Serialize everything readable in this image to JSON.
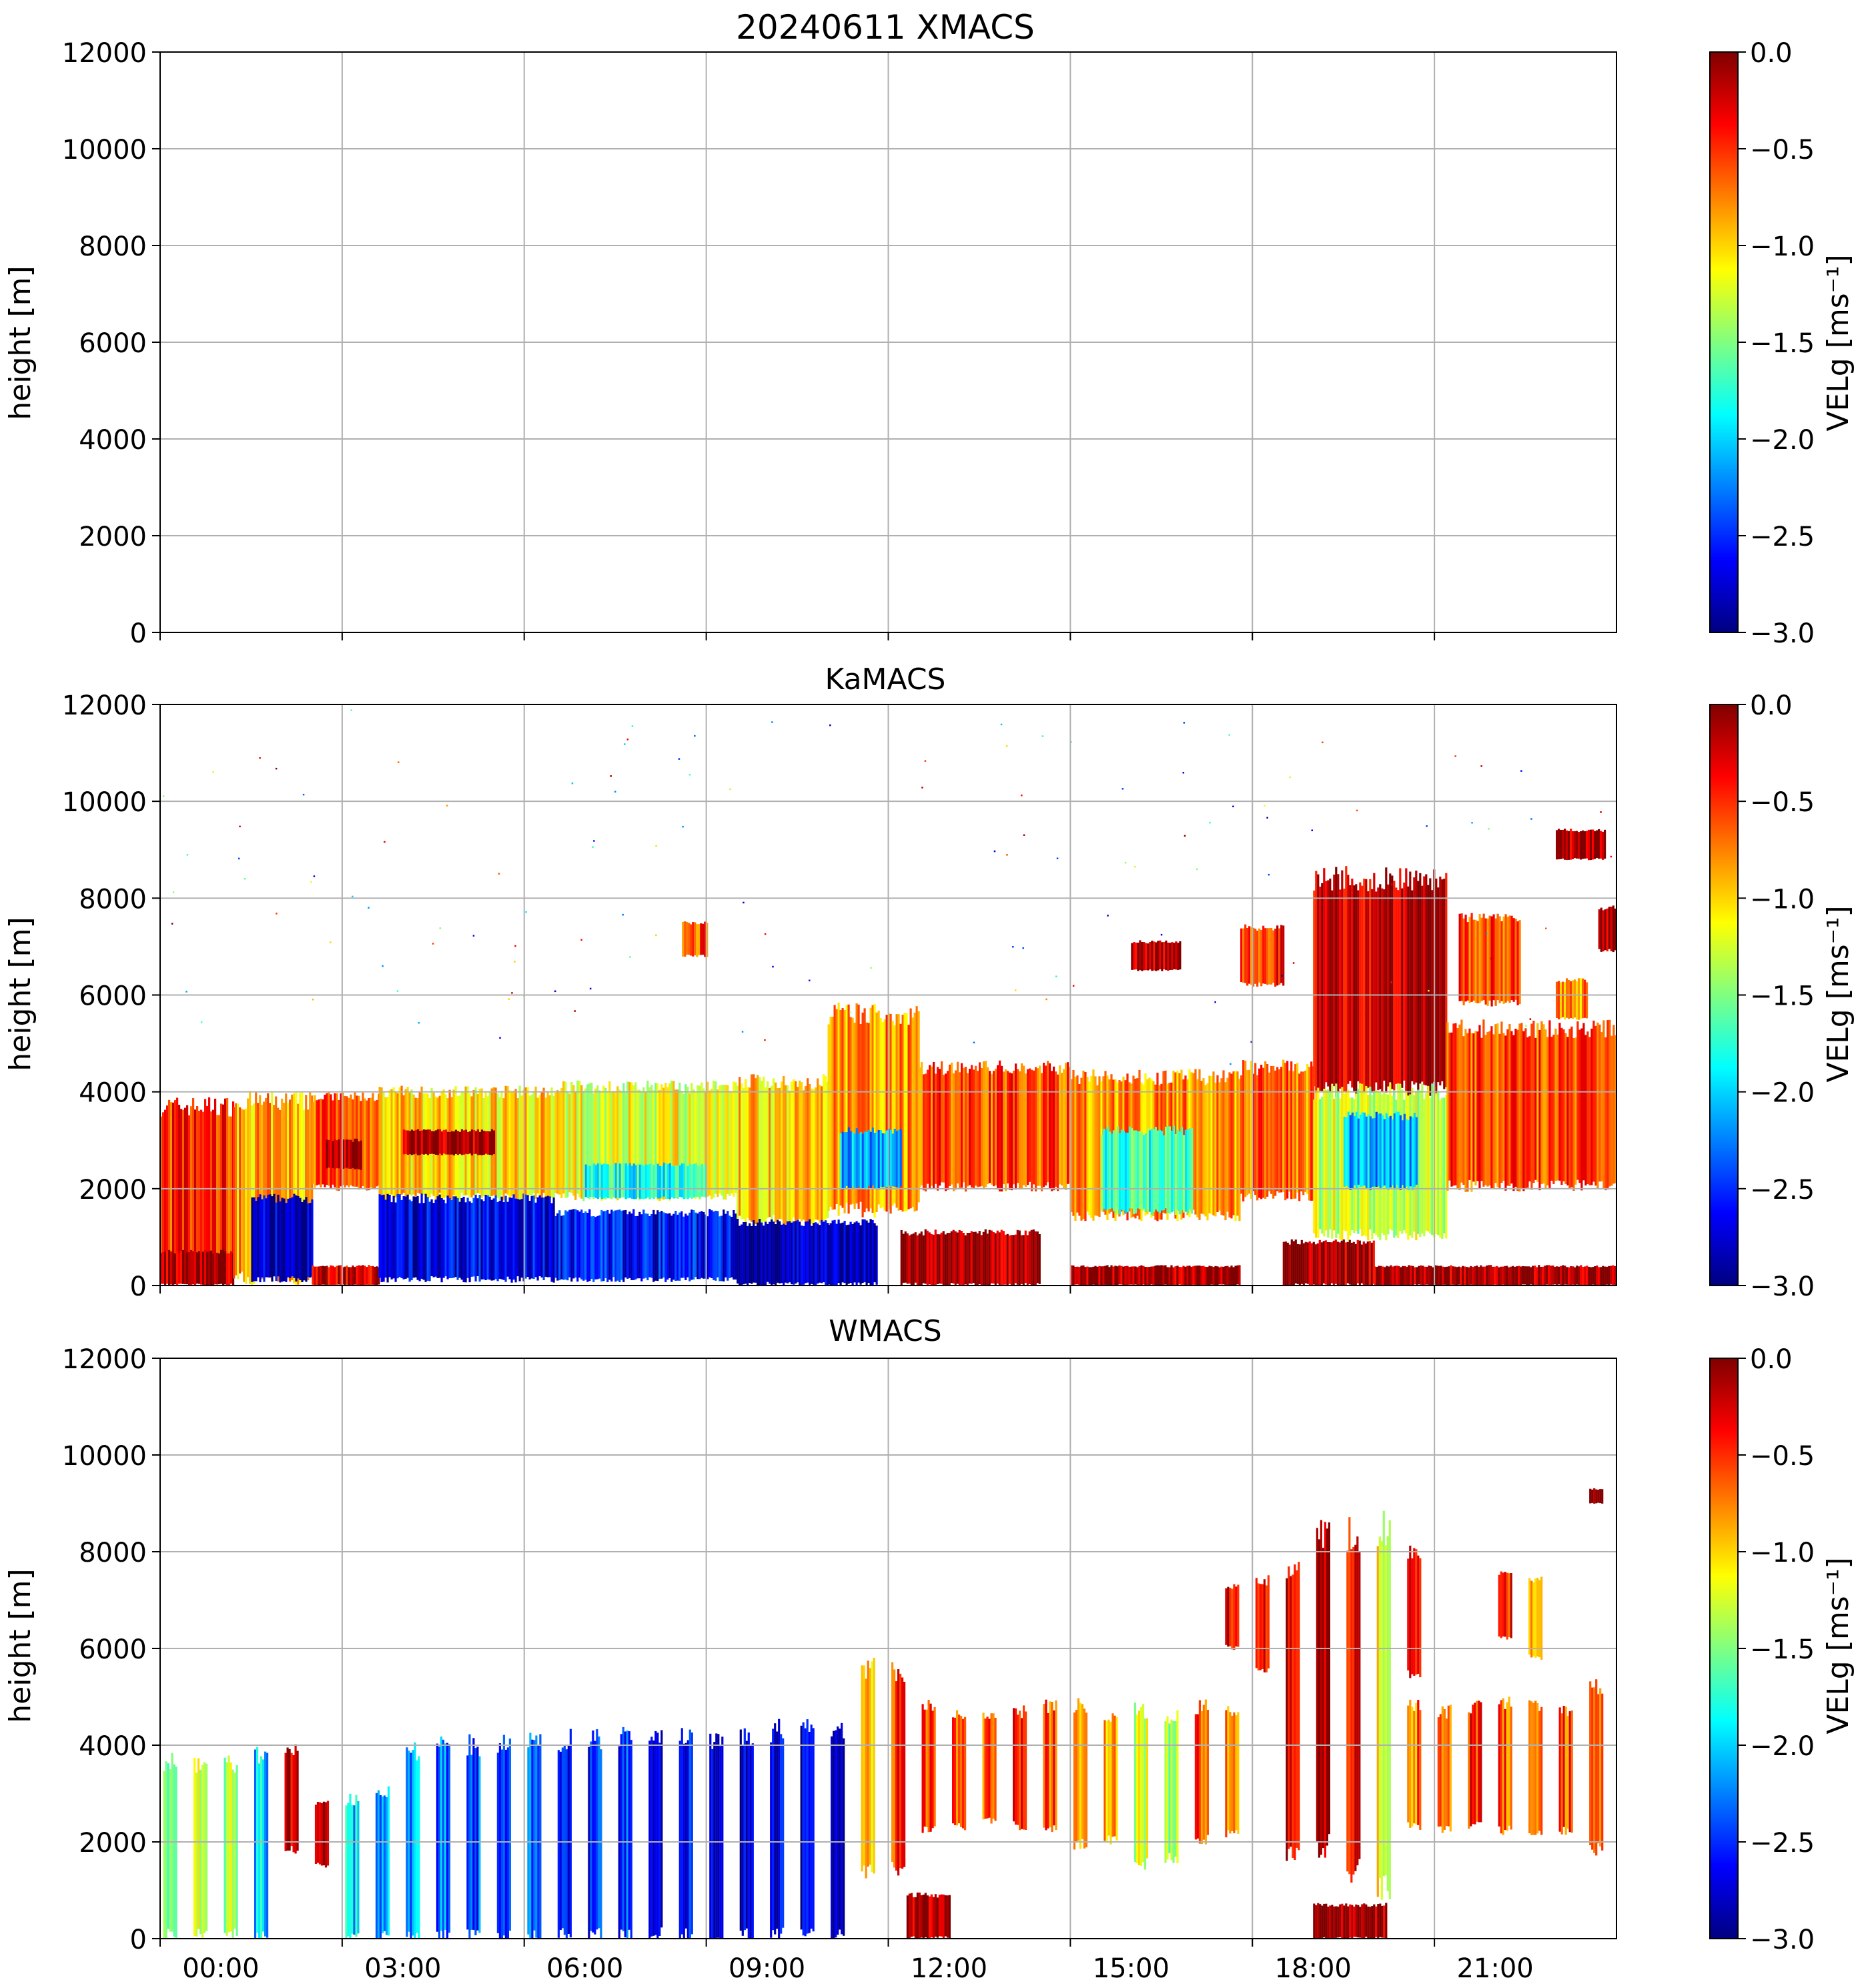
{
  "figure": {
    "background": "#ffffff",
    "grid_color": "#b0b0b0"
  },
  "colorbar": {
    "label": "VELg [ms⁻¹]",
    "ticks": [
      "0.0",
      "−0.5",
      "−1.0",
      "−1.5",
      "−2.0",
      "−2.5",
      "−3.0"
    ],
    "colormap": "jet",
    "stops": [
      "#000080",
      "#0000ff",
      "#0080ff",
      "#00ffff",
      "#80ff80",
      "#ffff00",
      "#ff8000",
      "#ff0000",
      "#800000"
    ]
  },
  "chart_data": [
    {
      "type": "heatmap",
      "title": "20240611 XMACS",
      "xlabel": "",
      "ylabel": "height [m]",
      "ylim": [
        0,
        12000
      ],
      "xlim_hours": [
        -1,
        23
      ],
      "yticks": [
        "0",
        "2000",
        "4000",
        "6000",
        "8000",
        "10000",
        "12000"
      ],
      "xticks": [],
      "clim": [
        -3.0,
        0.0
      ],
      "grid": true,
      "blocks": []
    },
    {
      "type": "heatmap",
      "title": "KaMACS",
      "xlabel": "",
      "ylabel": "height [m]",
      "ylim": [
        0,
        12000
      ],
      "xlim_hours": [
        -1,
        23
      ],
      "yticks": [
        "0",
        "2000",
        "4000",
        "6000",
        "8000",
        "10000",
        "12000"
      ],
      "xticks": [],
      "clim": [
        -3.0,
        0.0
      ],
      "grid": true,
      "blocks": [
        {
          "t0": -1.0,
          "t1": 0.2,
          "h0": 200,
          "h1": 3700,
          "v": -0.5
        },
        {
          "t0": -1.0,
          "t1": 0.2,
          "h0": 0,
          "h1": 700,
          "v": -0.1
        },
        {
          "t0": 0.2,
          "t1": 1.5,
          "h0": 100,
          "h1": 3800,
          "v": -0.9
        },
        {
          "t0": 0.5,
          "t1": 1.5,
          "h0": 100,
          "h1": 1800,
          "v": -2.8
        },
        {
          "t0": 1.5,
          "t1": 2.6,
          "h0": 2000,
          "h1": 3900,
          "v": -0.6
        },
        {
          "t0": 1.7,
          "t1": 2.3,
          "h0": 2400,
          "h1": 3000,
          "v": -0.1
        },
        {
          "t0": 1.5,
          "t1": 2.6,
          "h0": 0,
          "h1": 400,
          "v": -0.2
        },
        {
          "t0": 2.6,
          "t1": 5.5,
          "h0": 1800,
          "h1": 4000,
          "v": -1.0
        },
        {
          "t0": 2.6,
          "t1": 5.5,
          "h0": 100,
          "h1": 1800,
          "v": -2.7
        },
        {
          "t0": 3.0,
          "t1": 4.5,
          "h0": 2700,
          "h1": 3200,
          "v": -0.1
        },
        {
          "t0": 5.5,
          "t1": 8.5,
          "h0": 1800,
          "h1": 4100,
          "v": -1.2
        },
        {
          "t0": 5.5,
          "t1": 8.5,
          "h0": 100,
          "h1": 1500,
          "v": -2.6
        },
        {
          "t0": 6.0,
          "t1": 8.0,
          "h0": 1800,
          "h1": 2500,
          "v": -1.8
        },
        {
          "t0": 8.5,
          "t1": 10.0,
          "h0": 1300,
          "h1": 4200,
          "v": -1.0
        },
        {
          "t0": 8.5,
          "t1": 10.0,
          "h0": 0,
          "h1": 1300,
          "v": -2.9
        },
        {
          "t0": 10.0,
          "t1": 11.5,
          "h0": 1500,
          "h1": 5600,
          "v": -0.8
        },
        {
          "t0": 10.2,
          "t1": 11.2,
          "h0": 2000,
          "h1": 3200,
          "v": -2.1
        },
        {
          "t0": 10.0,
          "t1": 10.8,
          "h0": 0,
          "h1": 1300,
          "v": -2.9
        },
        {
          "t0": 11.5,
          "t1": 14.0,
          "h0": 2000,
          "h1": 4500,
          "v": -0.6
        },
        {
          "t0": 11.2,
          "t1": 13.5,
          "h0": 0,
          "h1": 1100,
          "v": -0.1
        },
        {
          "t0": 14.0,
          "t1": 16.8,
          "h0": 1400,
          "h1": 4300,
          "v": -0.8
        },
        {
          "t0": 14.5,
          "t1": 16.0,
          "h0": 1500,
          "h1": 3200,
          "v": -1.7
        },
        {
          "t0": 14.0,
          "t1": 16.8,
          "h0": 0,
          "h1": 400,
          "v": -0.1
        },
        {
          "t0": 15.0,
          "t1": 15.8,
          "h0": 6500,
          "h1": 7100,
          "v": -0.1
        },
        {
          "t0": 16.8,
          "t1": 17.5,
          "h0": 6200,
          "h1": 7400,
          "v": -0.5
        },
        {
          "t0": 16.8,
          "t1": 18.0,
          "h0": 1800,
          "h1": 4500,
          "v": -0.7
        },
        {
          "t0": 18.0,
          "t1": 20.2,
          "h0": 4000,
          "h1": 8400,
          "v": -0.2
        },
        {
          "t0": 18.0,
          "t1": 20.2,
          "h0": 1000,
          "h1": 4000,
          "v": -1.3
        },
        {
          "t0": 18.5,
          "t1": 19.7,
          "h0": 2000,
          "h1": 3500,
          "v": -2.1
        },
        {
          "t0": 17.5,
          "t1": 19.0,
          "h0": 0,
          "h1": 900,
          "v": -0.1
        },
        {
          "t0": 19.0,
          "t1": 23.0,
          "h0": 0,
          "h1": 400,
          "v": -0.1
        },
        {
          "t0": 20.2,
          "t1": 23.0,
          "h0": 2000,
          "h1": 5300,
          "v": -0.6
        },
        {
          "t0": 20.4,
          "t1": 21.4,
          "h0": 5800,
          "h1": 7600,
          "v": -0.6
        },
        {
          "t0": 22.0,
          "t1": 22.5,
          "h0": 5500,
          "h1": 6300,
          "v": -0.8
        },
        {
          "t0": 22.0,
          "t1": 22.8,
          "h0": 8800,
          "h1": 9400,
          "v": -0.1
        },
        {
          "t0": 22.7,
          "t1": 23.0,
          "h0": 6900,
          "h1": 7800,
          "v": -0.1
        },
        {
          "t0": 7.6,
          "t1": 8.0,
          "h0": 6800,
          "h1": 7500,
          "v": -0.6
        }
      ]
    },
    {
      "type": "heatmap",
      "title": "WMACS",
      "xlabel": "",
      "ylabel": "height [m]",
      "ylim": [
        0,
        12000
      ],
      "xlim_hours": [
        -1,
        23
      ],
      "yticks": [
        "0",
        "2000",
        "4000",
        "6000",
        "8000",
        "10000",
        "12000"
      ],
      "xticks": [
        "00:00",
        "03:00",
        "06:00",
        "09:00",
        "12:00",
        "15:00",
        "18:00",
        "21:00"
      ],
      "clim": [
        -3.0,
        0.0
      ],
      "grid": true,
      "columns_note": "periodic vertical stripes ~0.5 h apart",
      "blocks": [
        {
          "t0": -0.95,
          "t1": -0.75,
          "h0": 0,
          "h1": 3650,
          "v": -1.5
        },
        {
          "t0": -0.45,
          "t1": -0.25,
          "h0": 0,
          "h1": 3650,
          "v": -1.2
        },
        {
          "t0": 0.05,
          "t1": 0.25,
          "h0": 0,
          "h1": 3650,
          "v": -1.4
        },
        {
          "t0": 0.55,
          "t1": 0.75,
          "h0": 0,
          "h1": 3800,
          "v": -2.0
        },
        {
          "t0": 1.05,
          "t1": 1.25,
          "h0": 1800,
          "h1": 3900,
          "v": -0.2
        },
        {
          "t0": 1.55,
          "t1": 1.75,
          "h0": 1500,
          "h1": 2800,
          "v": -0.1
        },
        {
          "t0": 2.05,
          "t1": 2.25,
          "h0": 0,
          "h1": 2900,
          "v": -2.0
        },
        {
          "t0": 2.55,
          "t1": 2.75,
          "h0": 0,
          "h1": 3000,
          "v": -2.2
        },
        {
          "t0": 3.05,
          "t1": 3.25,
          "h0": 0,
          "h1": 3900,
          "v": -2.2
        },
        {
          "t0": 3.55,
          "t1": 3.75,
          "h0": 0,
          "h1": 4000,
          "v": -2.3
        },
        {
          "t0": 4.05,
          "t1": 4.25,
          "h0": 0,
          "h1": 4000,
          "v": -2.4
        },
        {
          "t0": 4.55,
          "t1": 4.75,
          "h0": 0,
          "h1": 4000,
          "v": -2.4
        },
        {
          "t0": 5.05,
          "t1": 5.25,
          "h0": 0,
          "h1": 4100,
          "v": -2.4
        },
        {
          "t0": 5.55,
          "t1": 5.75,
          "h0": 0,
          "h1": 4100,
          "v": -2.5
        },
        {
          "t0": 6.05,
          "t1": 6.25,
          "h0": 0,
          "h1": 4150,
          "v": -2.5
        },
        {
          "t0": 6.55,
          "t1": 6.75,
          "h0": 0,
          "h1": 4150,
          "v": -2.5
        },
        {
          "t0": 7.05,
          "t1": 7.25,
          "h0": 0,
          "h1": 4200,
          "v": -2.6
        },
        {
          "t0": 7.55,
          "t1": 7.75,
          "h0": 0,
          "h1": 4250,
          "v": -2.6
        },
        {
          "t0": 8.05,
          "t1": 8.25,
          "h0": 0,
          "h1": 4100,
          "v": -2.7
        },
        {
          "t0": 8.55,
          "t1": 8.75,
          "h0": 0,
          "h1": 4200,
          "v": -2.7
        },
        {
          "t0": 9.05,
          "t1": 9.25,
          "h0": 0,
          "h1": 4300,
          "v": -2.7
        },
        {
          "t0": 9.55,
          "t1": 9.75,
          "h0": 0,
          "h1": 4400,
          "v": -2.8
        },
        {
          "t0": 10.05,
          "t1": 10.25,
          "h0": 0,
          "h1": 4400,
          "v": -2.8
        },
        {
          "t0": 10.55,
          "t1": 10.75,
          "h0": 1300,
          "h1": 5600,
          "v": -1.0
        },
        {
          "t0": 11.05,
          "t1": 11.25,
          "h0": 1400,
          "h1": 5500,
          "v": -0.5
        },
        {
          "t0": 11.55,
          "t1": 11.75,
          "h0": 2200,
          "h1": 4800,
          "v": -0.5
        },
        {
          "t0": 12.05,
          "t1": 12.25,
          "h0": 2300,
          "h1": 4600,
          "v": -0.6
        },
        {
          "t0": 12.55,
          "t1": 12.75,
          "h0": 2400,
          "h1": 4600,
          "v": -0.6
        },
        {
          "t0": 13.05,
          "t1": 13.25,
          "h0": 2300,
          "h1": 4700,
          "v": -0.5
        },
        {
          "t0": 13.55,
          "t1": 13.75,
          "h0": 2200,
          "h1": 4800,
          "v": -0.6
        },
        {
          "t0": 14.05,
          "t1": 14.25,
          "h0": 1900,
          "h1": 4800,
          "v": -0.8
        },
        {
          "t0": 14.55,
          "t1": 14.75,
          "h0": 2000,
          "h1": 4600,
          "v": -0.9
        },
        {
          "t0": 15.05,
          "t1": 15.25,
          "h0": 1500,
          "h1": 4700,
          "v": -1.2
        },
        {
          "t0": 15.55,
          "t1": 15.75,
          "h0": 1600,
          "h1": 4600,
          "v": -1.4
        },
        {
          "t0": 16.05,
          "t1": 16.25,
          "h0": 2000,
          "h1": 4800,
          "v": -0.6
        },
        {
          "t0": 16.55,
          "t1": 16.75,
          "h0": 2100,
          "h1": 4700,
          "v": -0.7
        },
        {
          "t0": 16.55,
          "t1": 16.75,
          "h0": 6000,
          "h1": 7300,
          "v": -0.4
        },
        {
          "t0": 17.05,
          "t1": 17.25,
          "h0": 5500,
          "h1": 7400,
          "v": -0.3
        },
        {
          "t0": 17.55,
          "t1": 17.75,
          "h0": 1700,
          "h1": 7500,
          "v": -0.2
        },
        {
          "t0": 18.05,
          "t1": 18.25,
          "h0": 1800,
          "h1": 8300,
          "v": -0.1
        },
        {
          "t0": 18.55,
          "t1": 18.75,
          "h0": 1300,
          "h1": 8300,
          "v": -0.4
        },
        {
          "t0": 19.05,
          "t1": 19.25,
          "h0": 900,
          "h1": 8400,
          "v": -1.1
        },
        {
          "t0": 19.55,
          "t1": 19.75,
          "h0": 5400,
          "h1": 8000,
          "v": -0.3
        },
        {
          "t0": 19.55,
          "t1": 19.75,
          "h0": 2300,
          "h1": 4800,
          "v": -0.7
        },
        {
          "t0": 20.05,
          "t1": 20.25,
          "h0": 2200,
          "h1": 4700,
          "v": -0.6
        },
        {
          "t0": 20.55,
          "t1": 20.75,
          "h0": 2300,
          "h1": 4800,
          "v": -0.5
        },
        {
          "t0": 21.05,
          "t1": 21.25,
          "h0": 2200,
          "h1": 4900,
          "v": -0.6
        },
        {
          "t0": 21.05,
          "t1": 21.25,
          "h0": 6200,
          "h1": 7600,
          "v": -0.4
        },
        {
          "t0": 21.55,
          "t1": 21.75,
          "h0": 2100,
          "h1": 4800,
          "v": -0.6
        },
        {
          "t0": 21.55,
          "t1": 21.75,
          "h0": 5800,
          "h1": 7400,
          "v": -0.7
        },
        {
          "t0": 22.05,
          "t1": 22.25,
          "h0": 2200,
          "h1": 4700,
          "v": -0.6
        },
        {
          "t0": 22.55,
          "t1": 22.75,
          "h0": 1800,
          "h1": 5200,
          "v": -0.8
        },
        {
          "t0": 22.55,
          "t1": 22.75,
          "h0": 9000,
          "h1": 9300,
          "v": -0.1
        },
        {
          "t0": 18.0,
          "t1": 19.2,
          "h0": 0,
          "h1": 700,
          "v": -0.1
        },
        {
          "t0": 11.3,
          "t1": 12.0,
          "h0": 0,
          "h1": 900,
          "v": -0.1
        }
      ]
    }
  ]
}
